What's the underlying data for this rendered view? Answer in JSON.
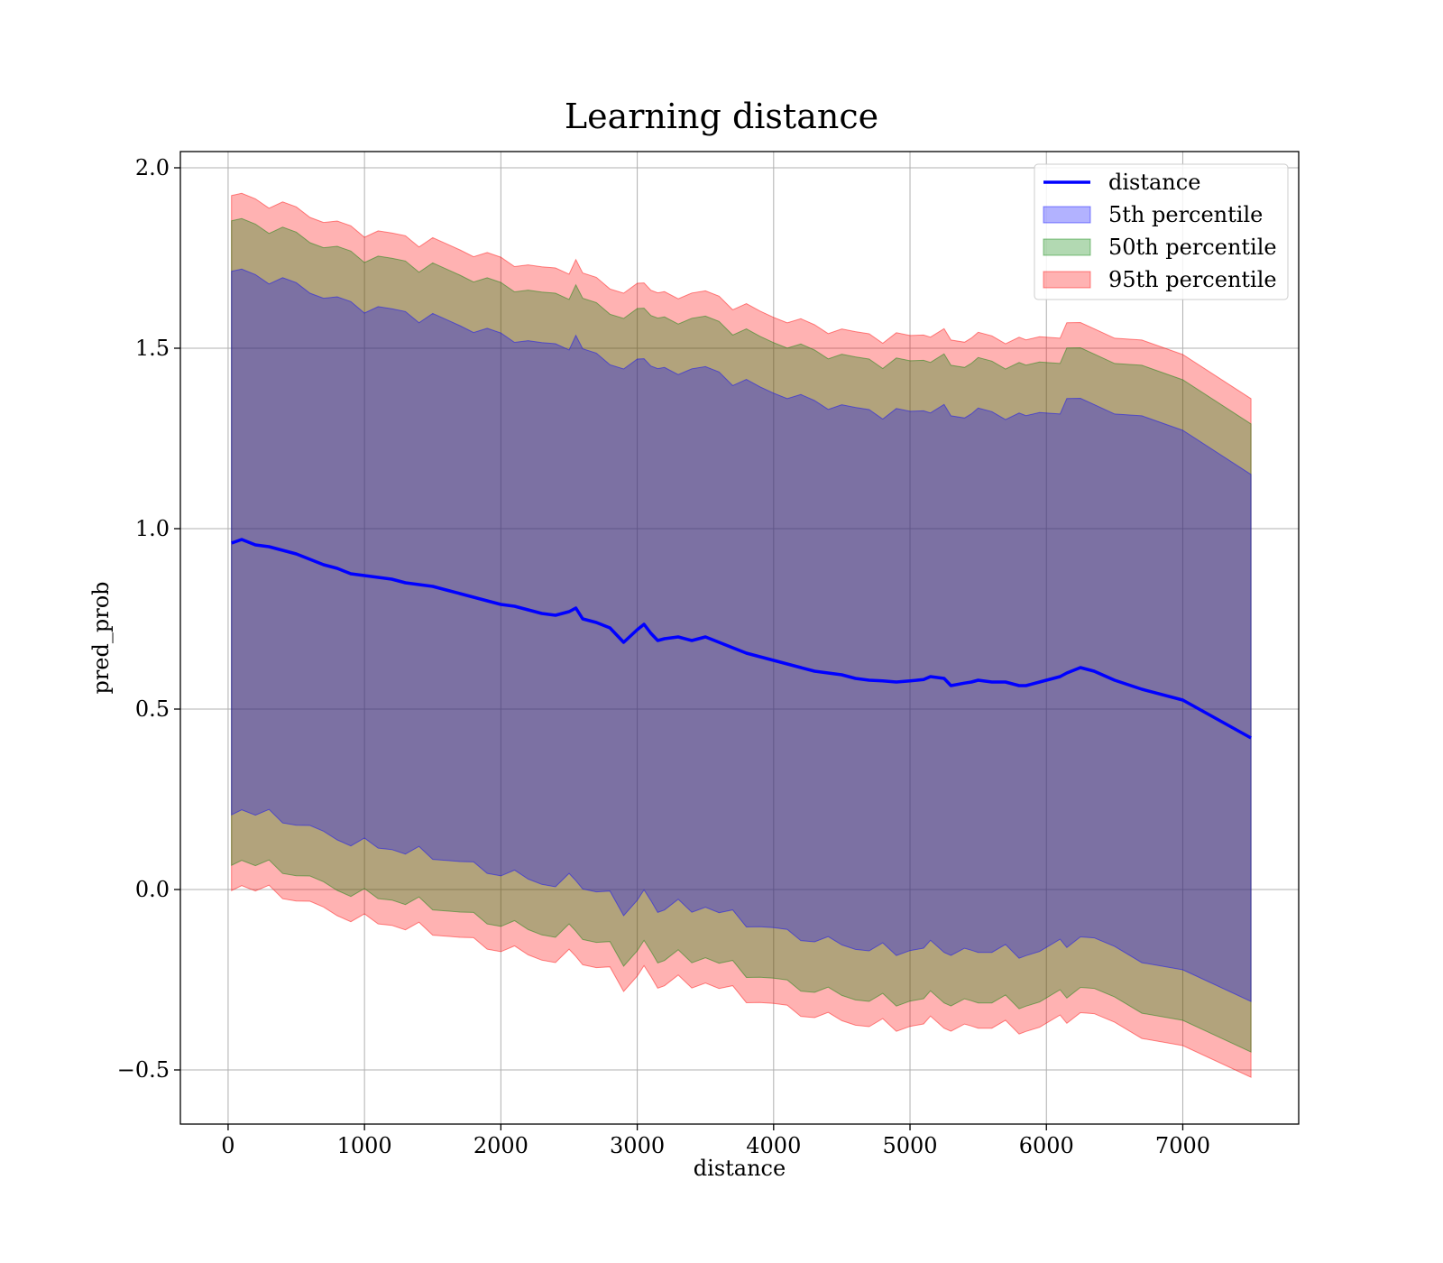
{
  "chart_data": {
    "type": "area",
    "title": "Learning distance",
    "xlabel": "distance",
    "ylabel": "pred_prob",
    "xlim": [
      -350,
      7850
    ],
    "ylim": [
      -0.65,
      2.045
    ],
    "x_ticks": [
      0,
      1000,
      2000,
      3000,
      4000,
      5000,
      6000,
      7000
    ],
    "x_tick_labels": [
      "0",
      "1000",
      "2000",
      "3000",
      "4000",
      "5000",
      "6000",
      "7000"
    ],
    "y_ticks": [
      -0.5,
      0.0,
      0.5,
      1.0,
      1.5,
      2.0
    ],
    "y_tick_labels": [
      "−0.5",
      "0.0",
      "0.5",
      "1.0",
      "1.5",
      "2.0"
    ],
    "grid": true,
    "legend": {
      "position": "top-right",
      "entries": [
        {
          "label": "distance",
          "kind": "line",
          "color": "#0000ff"
        },
        {
          "label": "5th percentile",
          "kind": "patch",
          "color": "#0000ff",
          "alpha": 0.3
        },
        {
          "label": "50th percentile",
          "kind": "patch",
          "color": "#008000",
          "alpha": 0.3
        },
        {
          "label": "95th percentile",
          "kind": "patch",
          "color": "#ff0000",
          "alpha": 0.3
        }
      ]
    },
    "line_series": {
      "name": "distance",
      "color": "#0000ff",
      "x": [
        25,
        100,
        200,
        300,
        400,
        500,
        600,
        700,
        800,
        900,
        1000,
        1100,
        1200,
        1300,
        1400,
        1500,
        1600,
        1700,
        1800,
        1900,
        2000,
        2100,
        2200,
        2300,
        2400,
        2500,
        2550,
        2600,
        2700,
        2800,
        2900,
        3000,
        3050,
        3100,
        3150,
        3200,
        3300,
        3400,
        3500,
        3600,
        3700,
        3800,
        3900,
        4000,
        4100,
        4200,
        4300,
        4400,
        4500,
        4600,
        4700,
        4800,
        4900,
        5000,
        5100,
        5150,
        5250,
        5300,
        5400,
        5450,
        5500,
        5600,
        5700,
        5800,
        5850,
        5950,
        6100,
        6150,
        6250,
        6350,
        6500,
        6700,
        7000,
        7500
      ],
      "y": [
        0.96,
        0.97,
        0.955,
        0.95,
        0.94,
        0.93,
        0.915,
        0.9,
        0.89,
        0.875,
        0.87,
        0.865,
        0.86,
        0.85,
        0.845,
        0.84,
        0.83,
        0.82,
        0.81,
        0.8,
        0.79,
        0.785,
        0.775,
        0.765,
        0.76,
        0.77,
        0.78,
        0.75,
        0.74,
        0.725,
        0.685,
        0.72,
        0.735,
        0.71,
        0.69,
        0.695,
        0.7,
        0.69,
        0.7,
        0.685,
        0.67,
        0.655,
        0.645,
        0.635,
        0.625,
        0.615,
        0.605,
        0.6,
        0.595,
        0.585,
        0.58,
        0.578,
        0.575,
        0.578,
        0.582,
        0.59,
        0.585,
        0.565,
        0.572,
        0.575,
        0.58,
        0.575,
        0.575,
        0.565,
        0.565,
        0.575,
        0.59,
        0.6,
        0.615,
        0.605,
        0.58,
        0.555,
        0.525,
        0.42
      ]
    },
    "bands": [
      {
        "name": "95th percentile",
        "color": "#ff0000",
        "alpha": 0.3,
        "half_width": 0.955
      },
      {
        "name": "50th percentile",
        "color": "#008000",
        "alpha": 0.3,
        "half_width": 0.885
      },
      {
        "name": "5th percentile",
        "color": "#0000ff",
        "alpha": 0.3,
        "half_width": 0.745
      }
    ]
  }
}
